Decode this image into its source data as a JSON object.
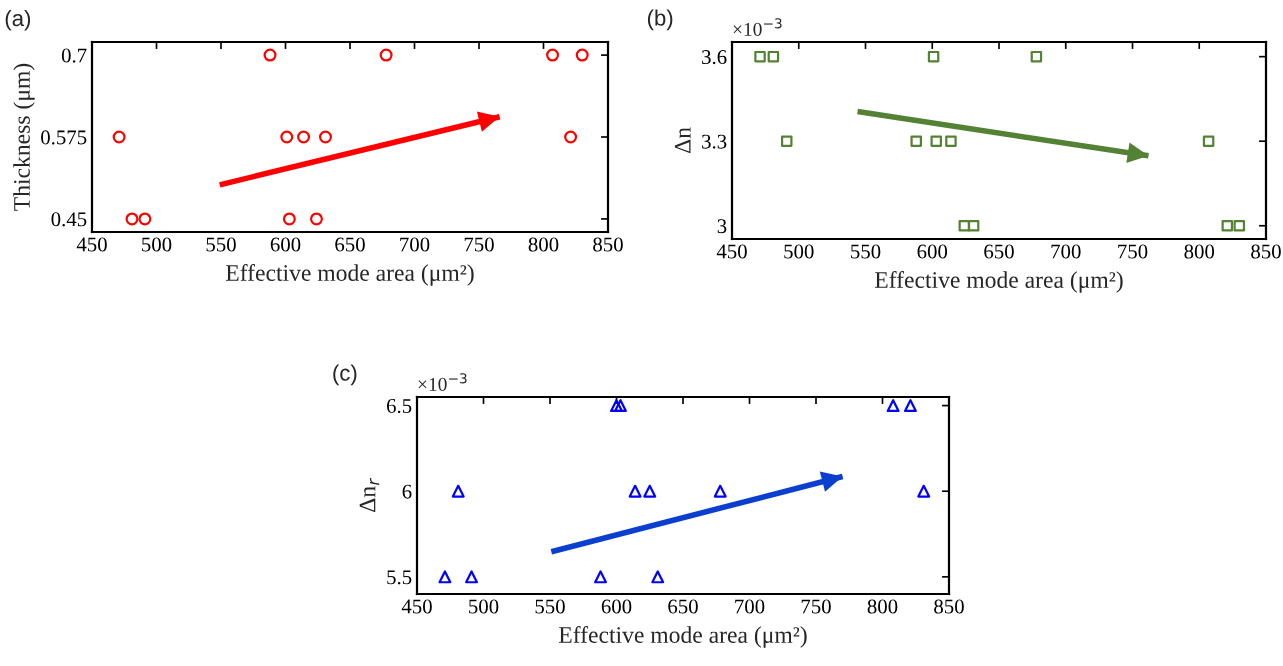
{
  "chart_data": [
    {
      "type": "scatter",
      "xlabel": "Effective mode area (μm²)",
      "ylabel": "Thickness (μm)",
      "xlim": [
        450,
        850
      ],
      "xticks": [
        450,
        500,
        550,
        600,
        650,
        700,
        750,
        800,
        850
      ],
      "ylim": [
        0.43,
        0.72
      ],
      "yticks": [
        0.45,
        0.575,
        0.7
      ],
      "grid": false,
      "annotations": [
        "(a)"
      ],
      "series": [
        {
          "marker": "circle",
          "color": "#ff0000",
          "x": [
            588,
            678,
            807,
            830,
            471,
            601,
            614,
            631,
            821,
            481,
            491,
            603,
            624
          ],
          "values": [
            0.7,
            0.7,
            0.7,
            0.7,
            0.575,
            0.575,
            0.575,
            0.575,
            0.575,
            0.45,
            0.45,
            0.45,
            0.45
          ]
        },
        {
          "type": "line",
          "marker": "none",
          "color": "#ff0000",
          "x": [
            549,
            766
          ],
          "values": [
            0.502,
            0.606
          ]
        }
      ]
    },
    {
      "type": "scatter",
      "xlabel": "Effective mode area (μm²)",
      "ylabel": "Δn",
      "xlim": [
        450,
        850
      ],
      "xticks": [
        450,
        500,
        550,
        600,
        650,
        700,
        750,
        800,
        850
      ],
      "ylim": [
        2.953,
        3.652
      ],
      "yticks": [
        3,
        3.3,
        3.6
      ],
      "grid": false,
      "annotations": [
        "(b)",
        "×10$^{−3}$"
      ],
      "series": [
        {
          "marker": "square",
          "color": "#548235",
          "x": [
            471,
            481,
            601,
            678,
            491,
            588,
            603,
            614,
            807,
            624,
            631,
            821,
            830
          ],
          "values": [
            3.6,
            3.6,
            3.6,
            3.6,
            3.3,
            3.3,
            3.3,
            3.3,
            3.3,
            3,
            3,
            3,
            3
          ]
        },
        {
          "type": "line",
          "marker": "none",
          "color": "#548235",
          "x": [
            544,
            762
          ],
          "values": [
            3.405,
            3.248
          ]
        }
      ]
    },
    {
      "type": "scatter",
      "xlabel": "Effective mode area (μm²)",
      "ylabel": "Δn$_{r}$",
      "xlim": [
        450,
        850
      ],
      "xticks": [
        450,
        500,
        550,
        600,
        650,
        700,
        750,
        800,
        850
      ],
      "ylim": [
        5.4,
        6.55
      ],
      "yticks": [
        5.5,
        6,
        6.5
      ],
      "grid": false,
      "annotations": [
        "(c)",
        "×10$^{−3}$"
      ],
      "series": [
        {
          "marker": "triangle",
          "color": "#0000ff",
          "x": [
            600,
            603,
            808,
            821,
            481,
            614,
            625,
            678,
            831,
            471,
            491,
            588,
            631
          ],
          "values": [
            6.5,
            6.5,
            6.5,
            6.5,
            6,
            6,
            6,
            6,
            6,
            5.5,
            5.5,
            5.5,
            5.5
          ]
        },
        {
          "type": "line",
          "marker": "none",
          "color": "#0b3fd0",
          "x": [
            551,
            770
          ],
          "values": [
            5.647,
            6.086
          ]
        }
      ]
    }
  ]
}
